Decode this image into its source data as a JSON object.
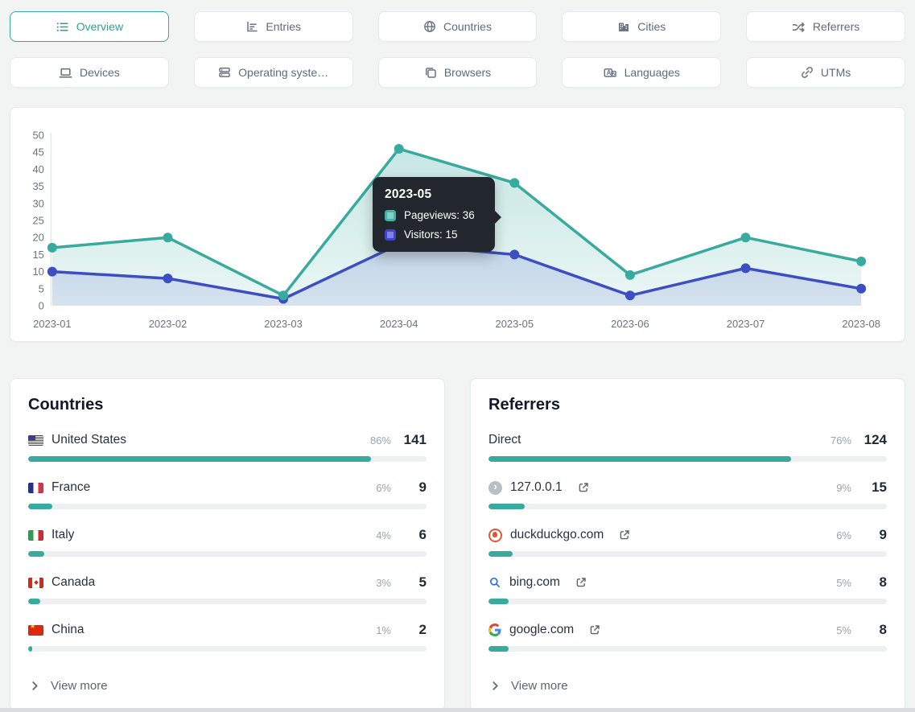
{
  "colors": {
    "accent_teal": "#38ab9e",
    "accent_blue": "#3c4ec2",
    "tooltip_bg": "#22272e",
    "bar_track": "#edeff1",
    "page_bg": "#f1f4f3"
  },
  "tabs": {
    "items": [
      {
        "label": "Overview",
        "icon": "list-icon",
        "active": true
      },
      {
        "label": "Entries",
        "icon": "bar-chart-icon",
        "active": false
      },
      {
        "label": "Countries",
        "icon": "globe-icon",
        "active": false
      },
      {
        "label": "Cities",
        "icon": "buildings-icon",
        "active": false
      },
      {
        "label": "Referrers",
        "icon": "shuffle-icon",
        "active": false
      },
      {
        "label": "Devices",
        "icon": "laptop-icon",
        "active": false
      },
      {
        "label": "Operating syste…",
        "icon": "server-stack-icon",
        "active": false
      },
      {
        "label": "Browsers",
        "icon": "windows-icon",
        "active": false
      },
      {
        "label": "Languages",
        "icon": "translate-icon",
        "active": false
      },
      {
        "label": "UTMs",
        "icon": "link-icon",
        "active": false
      }
    ]
  },
  "chart_data": {
    "type": "area",
    "x": [
      "2023-01",
      "2023-02",
      "2023-03",
      "2023-04",
      "2023-05",
      "2023-06",
      "2023-07",
      "2023-08"
    ],
    "series": [
      {
        "name": "Pageviews",
        "color": "#38ab9e",
        "values": [
          17,
          20,
          3,
          46,
          36,
          9,
          20,
          13
        ]
      },
      {
        "name": "Visitors",
        "color": "#3c4ec2",
        "values": [
          10,
          8,
          2,
          18,
          15,
          3,
          11,
          5
        ]
      }
    ],
    "ylim": [
      0,
      50
    ],
    "ytick_step": 5,
    "grid": false,
    "legend": "tooltip-only"
  },
  "tooltip": {
    "title": "2023-05",
    "rows": [
      {
        "label": "Pageviews: 36",
        "color": "#45b2a5",
        "inner": "#7ed1c6"
      },
      {
        "label": "Visitors: 15",
        "color": "#4145cd",
        "inner": "#7f83e3"
      }
    ]
  },
  "countries_card": {
    "title": "Countries",
    "view_more": "View more",
    "rows": [
      {
        "name": "United States",
        "flag": "us",
        "percent": "86%",
        "count": "141",
        "bar": 86
      },
      {
        "name": "France",
        "flag": "fr",
        "percent": "6%",
        "count": "9",
        "bar": 6
      },
      {
        "name": "Italy",
        "flag": "it",
        "percent": "4%",
        "count": "6",
        "bar": 4
      },
      {
        "name": "Canada",
        "flag": "ca",
        "percent": "3%",
        "count": "5",
        "bar": 3
      },
      {
        "name": "China",
        "flag": "cn",
        "percent": "1%",
        "count": "2",
        "bar": 1
      }
    ]
  },
  "referrers_card": {
    "title": "Referrers",
    "view_more": "View more",
    "rows": [
      {
        "name": "Direct",
        "icon": "none",
        "external_link": false,
        "percent": "76%",
        "count": "124",
        "bar": 76
      },
      {
        "name": "127.0.0.1",
        "icon": "localhost-favicon",
        "external_link": true,
        "percent": "9%",
        "count": "15",
        "bar": 9
      },
      {
        "name": "duckduckgo.com",
        "icon": "duckduckgo-favicon",
        "external_link": true,
        "percent": "6%",
        "count": "9",
        "bar": 6
      },
      {
        "name": "bing.com",
        "icon": "bing-favicon",
        "external_link": true,
        "percent": "5%",
        "count": "8",
        "bar": 5
      },
      {
        "name": "google.com",
        "icon": "google-favicon",
        "external_link": true,
        "percent": "5%",
        "count": "8",
        "bar": 5
      }
    ]
  }
}
